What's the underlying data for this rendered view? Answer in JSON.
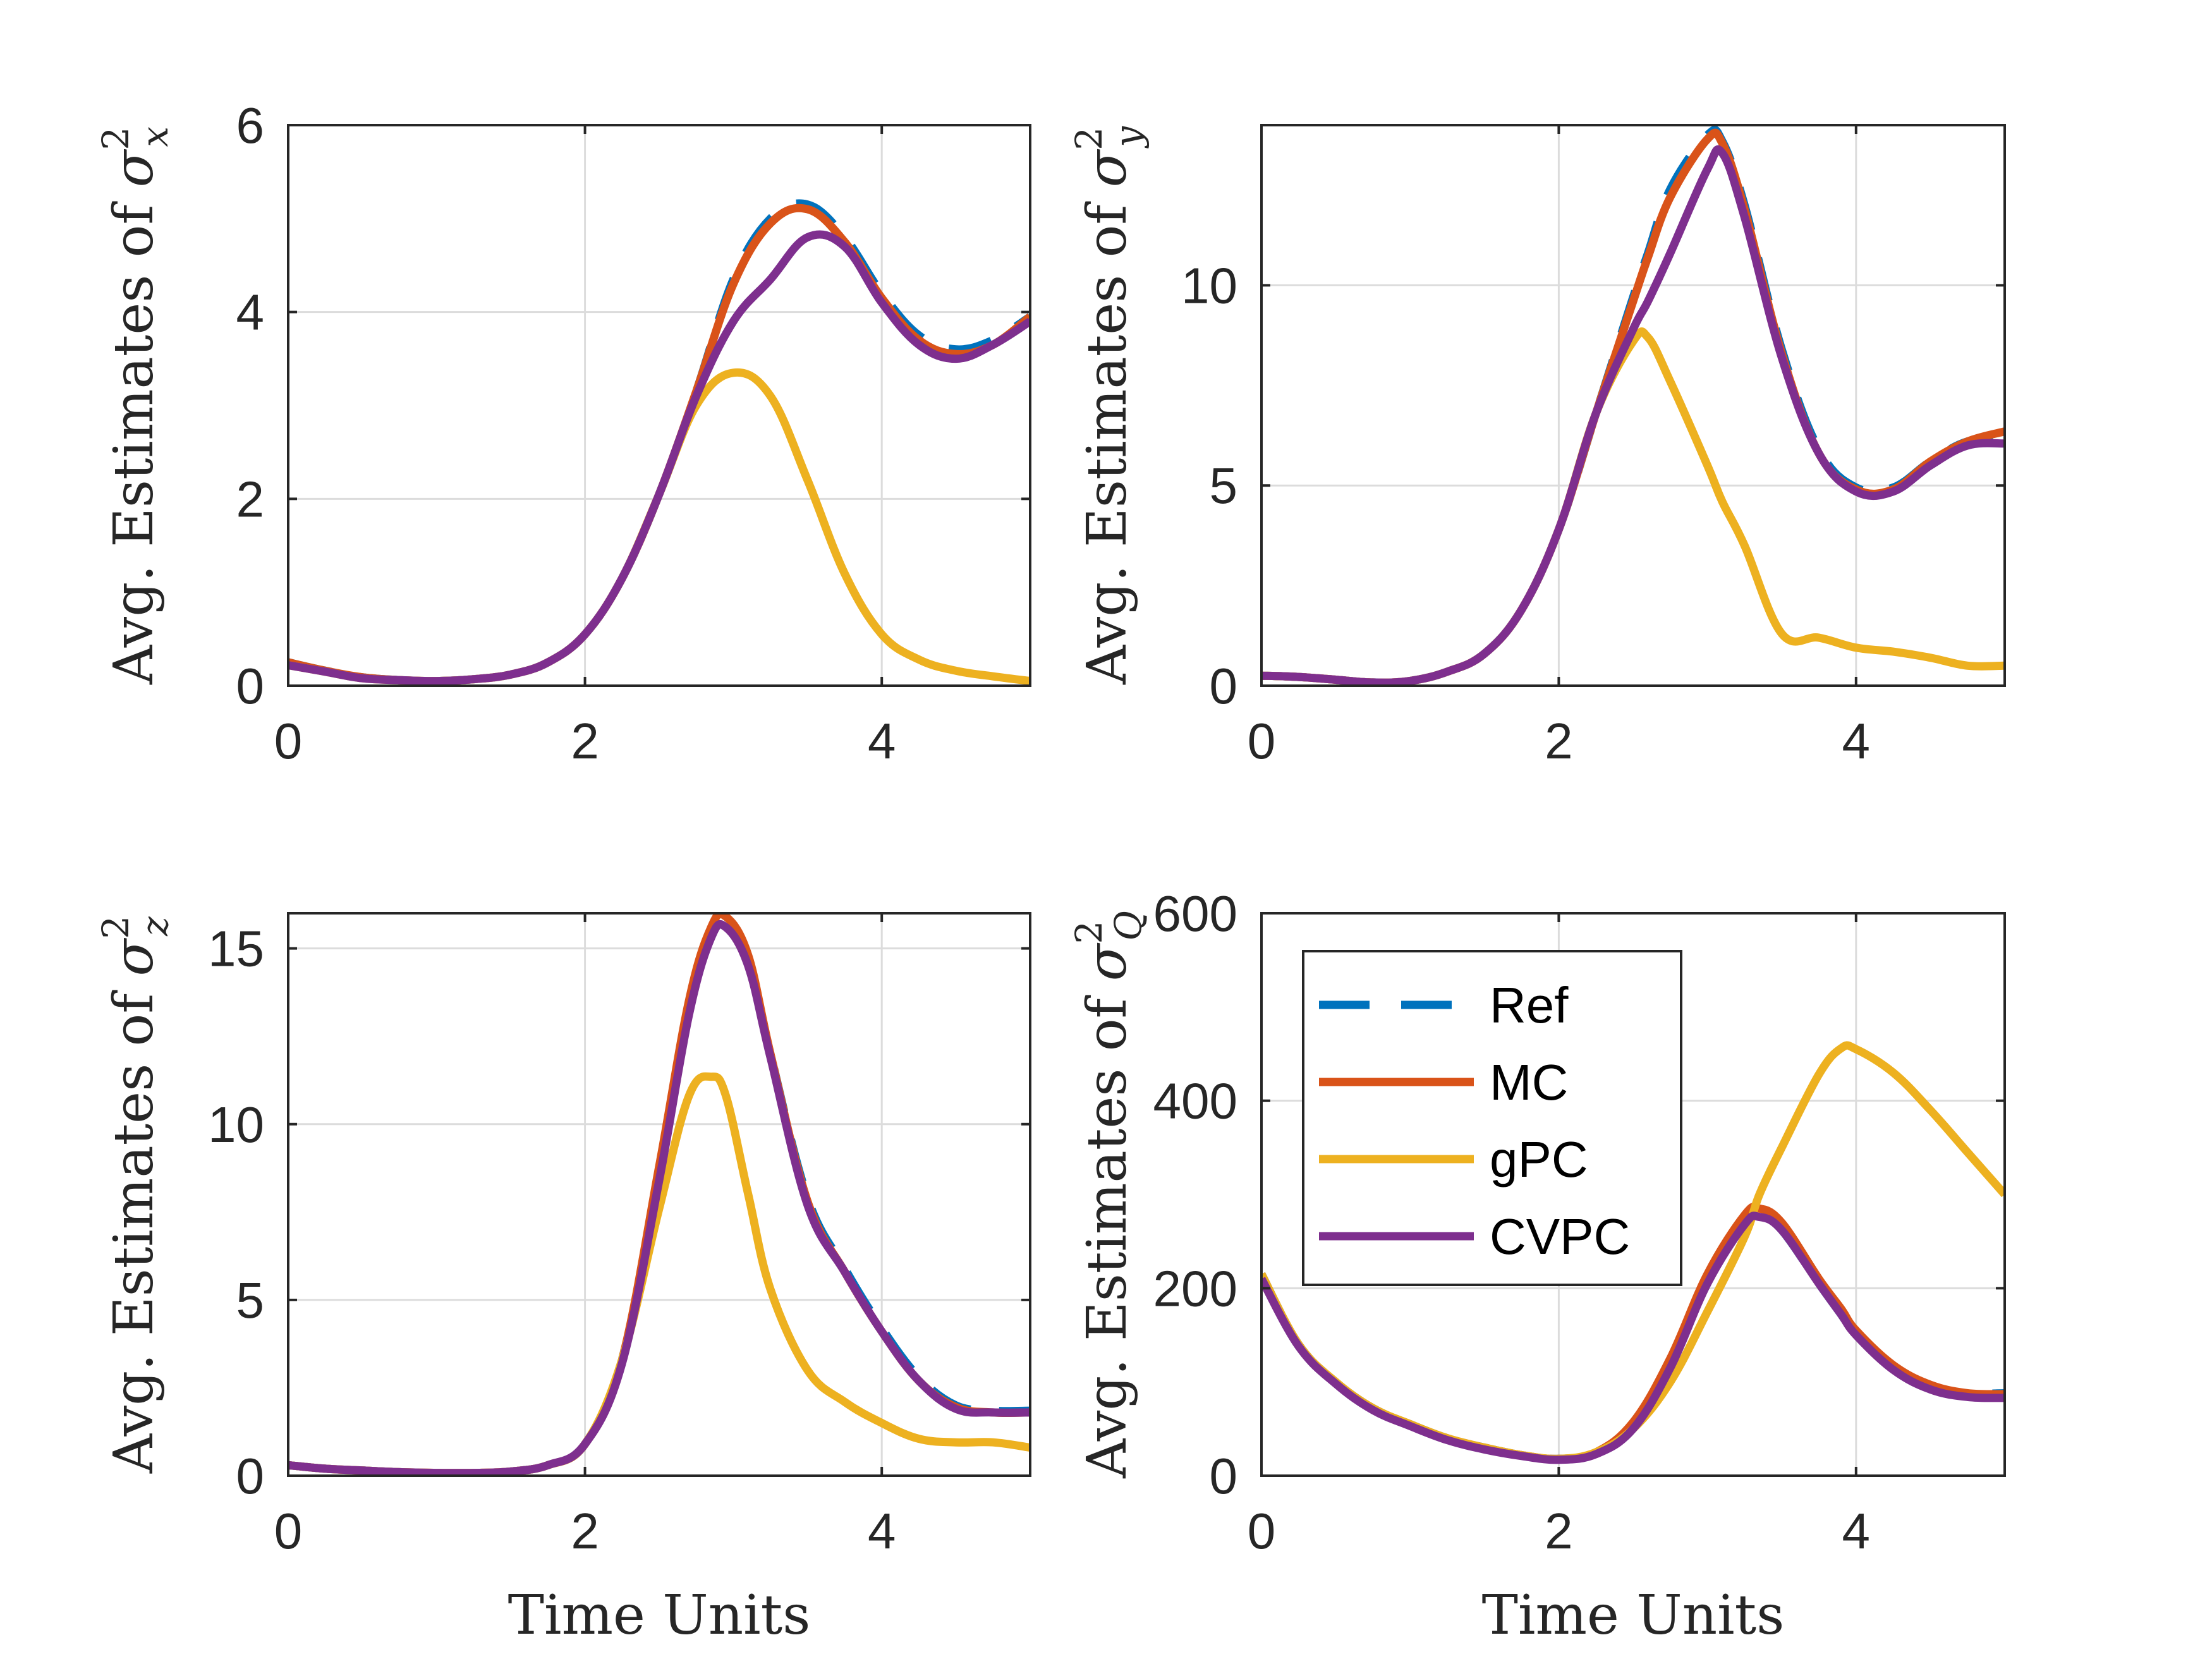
{
  "chart_data": [
    {
      "type": "line",
      "panel": "top-left",
      "ylabel_prefix": "Avg.  Estimates of ",
      "ylabel_symbol": "σ",
      "ylabel_sup": "2",
      "ylabel_sub": "x",
      "xlabel": "",
      "xlim": [
        0,
        5
      ],
      "ylim": [
        0,
        6
      ],
      "xticks": [
        "0",
        "2",
        "4"
      ],
      "xtick_values": [
        0,
        2,
        4
      ],
      "yticks": [
        "0",
        "2",
        "4",
        "6"
      ],
      "ytick_values": [
        0,
        2,
        4,
        6
      ],
      "x": [
        0,
        0.25,
        0.5,
        0.75,
        1.0,
        1.25,
        1.5,
        1.75,
        2.0,
        2.25,
        2.5,
        2.75,
        3.0,
        3.25,
        3.5,
        3.75,
        4.0,
        4.25,
        4.5,
        4.75,
        5.0
      ],
      "series": [
        {
          "name": "Ref",
          "values": [
            0.25,
            0.16,
            0.09,
            0.06,
            0.05,
            0.07,
            0.12,
            0.25,
            0.55,
            1.15,
            2.05,
            3.15,
            4.35,
            5.0,
            5.15,
            4.8,
            4.2,
            3.75,
            3.6,
            3.7,
            3.95
          ]
        },
        {
          "name": "MC",
          "values": [
            0.25,
            0.16,
            0.09,
            0.06,
            0.05,
            0.07,
            0.12,
            0.25,
            0.55,
            1.15,
            2.05,
            3.15,
            4.3,
            4.95,
            5.1,
            4.75,
            4.15,
            3.7,
            3.55,
            3.65,
            3.95
          ]
        },
        {
          "name": "gPC",
          "values": [
            0.22,
            0.15,
            0.08,
            0.06,
            0.05,
            0.07,
            0.12,
            0.25,
            0.55,
            1.15,
            2.05,
            3.0,
            3.35,
            3.1,
            2.2,
            1.2,
            0.55,
            0.28,
            0.16,
            0.1,
            0.05
          ]
        },
        {
          "name": "CVPC",
          "values": [
            0.22,
            0.15,
            0.08,
            0.06,
            0.05,
            0.07,
            0.12,
            0.25,
            0.55,
            1.15,
            2.05,
            3.1,
            3.9,
            4.35,
            4.8,
            4.7,
            4.1,
            3.65,
            3.5,
            3.65,
            3.9
          ]
        }
      ]
    },
    {
      "type": "line",
      "panel": "top-right",
      "ylabel_prefix": "Avg.  Estimates of ",
      "ylabel_symbol": "σ",
      "ylabel_sup": "2",
      "ylabel_sub": "y",
      "xlabel": "",
      "xlim": [
        0,
        5
      ],
      "ylim": [
        0,
        14
      ],
      "xticks": [
        "0",
        "2",
        "4"
      ],
      "xtick_values": [
        0,
        2,
        4
      ],
      "yticks": [
        "0",
        "5",
        "10"
      ],
      "ytick_values": [
        0,
        5,
        10
      ],
      "x": [
        0,
        0.25,
        0.5,
        0.75,
        1.0,
        1.25,
        1.5,
        1.75,
        2.0,
        2.25,
        2.5,
        2.6,
        2.75,
        3.0,
        3.1,
        3.25,
        3.5,
        3.75,
        4.0,
        4.25,
        4.5,
        4.75,
        5.0
      ],
      "series": [
        {
          "name": "Ref",
          "values": [
            0.25,
            0.22,
            0.15,
            0.08,
            0.12,
            0.35,
            0.8,
            1.9,
            3.9,
            6.8,
            9.7,
            10.8,
            12.4,
            13.75,
            13.6,
            12.0,
            8.4,
            5.9,
            4.95,
            4.95,
            5.6,
            6.1,
            6.15
          ]
        },
        {
          "name": "MC",
          "values": [
            0.25,
            0.22,
            0.15,
            0.08,
            0.12,
            0.35,
            0.8,
            1.9,
            3.9,
            6.8,
            9.6,
            10.7,
            12.2,
            13.65,
            13.55,
            11.9,
            8.3,
            5.8,
            4.9,
            4.9,
            5.6,
            6.1,
            6.35
          ]
        },
        {
          "name": "gPC",
          "values": [
            0.25,
            0.22,
            0.15,
            0.08,
            0.12,
            0.35,
            0.8,
            1.9,
            3.9,
            6.8,
            8.6,
            8.7,
            7.6,
            5.5,
            4.6,
            3.5,
            1.3,
            1.2,
            0.95,
            0.85,
            0.7,
            0.5,
            0.5
          ]
        },
        {
          "name": "CVPC",
          "values": [
            0.25,
            0.22,
            0.15,
            0.08,
            0.12,
            0.35,
            0.8,
            1.9,
            3.9,
            6.8,
            8.9,
            9.6,
            10.8,
            12.9,
            13.3,
            11.7,
            8.2,
            5.8,
            4.85,
            4.85,
            5.5,
            6.0,
            6.05
          ]
        }
      ]
    },
    {
      "type": "line",
      "panel": "bottom-left",
      "ylabel_prefix": "Avg.  Estimates of ",
      "ylabel_symbol": "σ",
      "ylabel_sup": "2",
      "ylabel_sub": "z",
      "xlabel": "Time Units",
      "xlim": [
        0,
        5
      ],
      "ylim": [
        0,
        16
      ],
      "xticks": [
        "0",
        "2",
        "4"
      ],
      "xtick_values": [
        0,
        2,
        4
      ],
      "yticks": [
        "0",
        "5",
        "10",
        "15"
      ],
      "ytick_values": [
        0,
        5,
        10,
        15
      ],
      "x": [
        0,
        0.25,
        0.5,
        0.75,
        1.0,
        1.25,
        1.5,
        1.75,
        2.0,
        2.25,
        2.5,
        2.7,
        2.85,
        2.95,
        3.1,
        3.25,
        3.5,
        3.75,
        4.0,
        4.25,
        4.5,
        4.75,
        5.0
      ],
      "series": [
        {
          "name": "Ref",
          "values": [
            0.3,
            0.2,
            0.15,
            0.1,
            0.08,
            0.08,
            0.12,
            0.3,
            0.9,
            3.3,
            8.7,
            13.3,
            15.5,
            15.8,
            14.7,
            12.0,
            7.9,
            5.9,
            4.2,
            2.8,
            2.0,
            1.85,
            1.85
          ]
        },
        {
          "name": "MC",
          "values": [
            0.3,
            0.2,
            0.15,
            0.1,
            0.08,
            0.08,
            0.12,
            0.3,
            0.9,
            3.3,
            8.8,
            13.5,
            15.6,
            15.9,
            14.8,
            12.0,
            7.8,
            5.8,
            4.1,
            2.7,
            1.95,
            1.8,
            1.8
          ]
        },
        {
          "name": "gPC",
          "values": [
            0.3,
            0.2,
            0.15,
            0.1,
            0.08,
            0.08,
            0.12,
            0.3,
            0.9,
            3.3,
            7.6,
            10.8,
            11.35,
            10.8,
            8.0,
            5.3,
            3.0,
            2.1,
            1.5,
            1.05,
            0.95,
            0.95,
            0.8
          ]
        },
        {
          "name": "CVPC",
          "values": [
            0.3,
            0.2,
            0.15,
            0.1,
            0.08,
            0.08,
            0.12,
            0.3,
            0.9,
            3.2,
            8.4,
            13.1,
            15.3,
            15.6,
            14.5,
            11.9,
            7.7,
            5.8,
            4.1,
            2.7,
            1.9,
            1.8,
            1.8
          ]
        }
      ]
    },
    {
      "type": "line",
      "panel": "bottom-right",
      "ylabel_prefix": "Avg.  Estimates of ",
      "ylabel_symbol": "σ",
      "ylabel_sup": "2",
      "ylabel_sub": "Q",
      "xlabel": "Time Units",
      "xlim": [
        0,
        5
      ],
      "ylim": [
        0,
        600
      ],
      "xticks": [
        "0",
        "2",
        "4"
      ],
      "xtick_values": [
        0,
        2,
        4
      ],
      "yticks": [
        "0",
        "200",
        "400",
        "600"
      ],
      "ytick_values": [
        0,
        200,
        400,
        600
      ],
      "legend_position": "top-left",
      "x": [
        0,
        0.25,
        0.5,
        0.75,
        1.0,
        1.25,
        1.5,
        1.75,
        2.0,
        2.25,
        2.5,
        2.75,
        3.0,
        3.25,
        3.35,
        3.5,
        3.75,
        3.9,
        4.0,
        4.25,
        4.5,
        4.75,
        5.0
      ],
      "series": [
        {
          "name": "Ref",
          "values": [
            215,
            140,
            100,
            72,
            55,
            40,
            30,
            22,
            18,
            25,
            55,
            120,
            210,
            270,
            278,
            262,
            205,
            172,
            150,
            115,
            95,
            88,
            88
          ]
        },
        {
          "name": "MC",
          "values": [
            215,
            140,
            100,
            72,
            55,
            40,
            30,
            22,
            18,
            25,
            57,
            125,
            215,
            278,
            285,
            270,
            210,
            178,
            155,
            118,
            97,
            88,
            87
          ]
        },
        {
          "name": "gPC",
          "values": [
            215,
            140,
            100,
            72,
            55,
            40,
            30,
            22,
            18,
            25,
            50,
            100,
            175,
            255,
            300,
            350,
            428,
            456,
            455,
            430,
            390,
            345,
            300
          ]
        },
        {
          "name": "CVPC",
          "values": [
            210,
            138,
            98,
            70,
            53,
            38,
            28,
            21,
            17,
            23,
            50,
            115,
            205,
            268,
            276,
            262,
            205,
            172,
            150,
            113,
            92,
            84,
            83
          ]
        }
      ]
    }
  ],
  "legend": {
    "items": [
      {
        "name": "Ref",
        "color": "#0072bd",
        "dash": "dashed"
      },
      {
        "name": "MC",
        "color": "#d95319",
        "dash": "solid"
      },
      {
        "name": "gPC",
        "color": "#edb120",
        "dash": "solid"
      },
      {
        "name": "CVPC",
        "color": "#7e2f8e",
        "dash": "solid"
      }
    ]
  },
  "colors": {
    "Ref": "#0072bd",
    "MC": "#d95319",
    "gPC": "#edb120",
    "CVPC": "#7e2f8e",
    "axis": "#262626",
    "grid": "#dcdcdc"
  }
}
